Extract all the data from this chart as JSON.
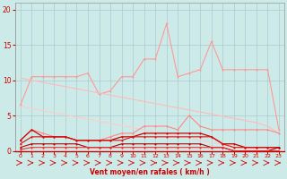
{
  "background_color": "#cceae8",
  "grid_color": "#aacccc",
  "xlabel": "Vent moyen/en rafales ( km/h )",
  "xlabel_color": "#cc0000",
  "tick_color": "#cc0000",
  "x_values": [
    0,
    1,
    2,
    3,
    4,
    5,
    6,
    7,
    8,
    9,
    10,
    11,
    12,
    13,
    14,
    15,
    16,
    17,
    18,
    19,
    20,
    21,
    22,
    23
  ],
  "series": [
    {
      "name": "line_peach_jagged",
      "color": "#ff9999",
      "linewidth": 0.8,
      "marker": "o",
      "markersize": 1.5,
      "y": [
        6.5,
        10.5,
        10.5,
        10.5,
        10.5,
        10.5,
        11.0,
        8.0,
        8.5,
        10.5,
        10.5,
        13.0,
        13.0,
        18.0,
        10.5,
        11.0,
        11.5,
        15.5,
        11.5,
        11.5,
        11.5,
        11.5,
        11.5,
        3.0
      ]
    },
    {
      "name": "line_pink_diagonal_upper",
      "color": "#ffbbbb",
      "linewidth": 0.8,
      "marker": null,
      "markersize": 0,
      "y": [
        10.3,
        10.0,
        9.7,
        9.4,
        9.1,
        8.8,
        8.5,
        8.2,
        7.9,
        7.6,
        7.3,
        7.0,
        6.7,
        6.4,
        6.1,
        5.8,
        5.5,
        5.2,
        4.9,
        4.6,
        4.3,
        4.0,
        3.5,
        2.5
      ]
    },
    {
      "name": "line_pink_diagonal_lower",
      "color": "#ffcccc",
      "linewidth": 0.8,
      "marker": null,
      "markersize": 0,
      "y": [
        6.3,
        6.0,
        5.7,
        5.4,
        5.1,
        4.8,
        4.5,
        4.2,
        3.9,
        3.6,
        3.3,
        3.0,
        2.7,
        2.4,
        2.1,
        1.8,
        1.5,
        1.2,
        0.9,
        0.6,
        0.3,
        0.1,
        0.0,
        0.0
      ]
    },
    {
      "name": "line_salmon_dots",
      "color": "#ff8888",
      "linewidth": 0.8,
      "marker": "o",
      "markersize": 1.5,
      "y": [
        1.5,
        3.0,
        2.5,
        2.0,
        2.0,
        1.5,
        1.5,
        1.5,
        2.0,
        2.5,
        2.5,
        3.5,
        3.5,
        3.5,
        3.0,
        5.0,
        3.5,
        3.0,
        3.0,
        3.0,
        3.0,
        3.0,
        3.0,
        2.5
      ]
    },
    {
      "name": "line_dark_red1",
      "color": "#cc0000",
      "linewidth": 0.9,
      "marker": "o",
      "markersize": 1.5,
      "y": [
        1.5,
        3.0,
        2.0,
        2.0,
        2.0,
        1.5,
        1.5,
        1.5,
        1.5,
        2.0,
        2.0,
        2.5,
        2.5,
        2.5,
        2.5,
        2.5,
        2.5,
        2.0,
        1.0,
        1.0,
        0.5,
        0.5,
        0.5,
        0.5
      ]
    },
    {
      "name": "line_dark_red2",
      "color": "#dd1111",
      "linewidth": 0.8,
      "marker": "o",
      "markersize": 1.5,
      "y": [
        1.0,
        2.0,
        2.0,
        2.0,
        2.0,
        1.5,
        1.5,
        1.5,
        1.5,
        1.5,
        2.0,
        2.0,
        2.0,
        2.0,
        2.0,
        2.0,
        2.0,
        2.0,
        1.0,
        0.5,
        0.5,
        0.5,
        0.5,
        0.5
      ]
    },
    {
      "name": "line_dark_red3",
      "color": "#bb0000",
      "linewidth": 0.8,
      "marker": "o",
      "markersize": 1.5,
      "y": [
        0.5,
        1.0,
        1.0,
        1.0,
        1.0,
        1.0,
        0.5,
        0.5,
        0.5,
        1.0,
        1.0,
        1.0,
        1.0,
        1.0,
        1.0,
        1.0,
        1.0,
        0.5,
        0.5,
        0.0,
        0.0,
        0.0,
        0.0,
        0.5
      ]
    },
    {
      "name": "line_dark_red4",
      "color": "#ee3333",
      "linewidth": 0.8,
      "marker": "o",
      "markersize": 1.5,
      "y": [
        0.2,
        0.5,
        0.5,
        0.5,
        0.5,
        0.5,
        0.5,
        0.5,
        0.5,
        0.5,
        0.5,
        0.5,
        0.5,
        0.5,
        0.5,
        0.5,
        0.5,
        0.5,
        0.5,
        0.0,
        0.0,
        0.0,
        0.0,
        0.0
      ]
    }
  ],
  "ylim": [
    0,
    21
  ],
  "yticks": [
    0,
    5,
    10,
    15,
    20
  ],
  "xticks": [
    0,
    1,
    2,
    3,
    4,
    5,
    6,
    7,
    8,
    9,
    10,
    11,
    12,
    13,
    14,
    15,
    16,
    17,
    18,
    19,
    20,
    21,
    22,
    23
  ],
  "arrow_color": "#cc2222",
  "arrow_angles": [
    0,
    0,
    0,
    0,
    0,
    0,
    0,
    0,
    0,
    0,
    30,
    30,
    45,
    45,
    45,
    45,
    30,
    30,
    30,
    20,
    20,
    15,
    10,
    10
  ]
}
